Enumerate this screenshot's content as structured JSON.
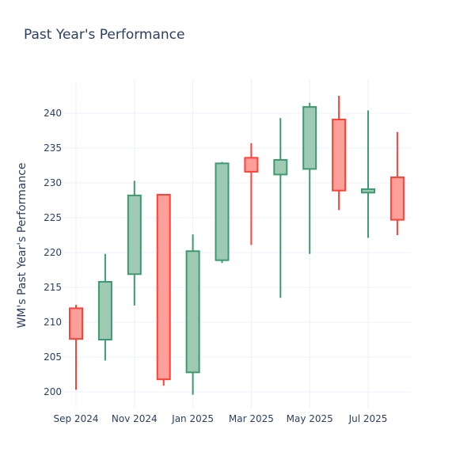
{
  "chart_data": {
    "type": "candlestick",
    "title": "Past Year's Performance",
    "xlabel": "",
    "ylabel": "WM's Past Year's Performance",
    "ylim": [
      197.5,
      245
    ],
    "grid": true,
    "colors": {
      "increasing": "#3d9970",
      "increasing_fill": "#9ecab4",
      "decreasing": "#ff4136",
      "decreasing_fill": "#ff9f9a",
      "grid": "#ebf0f8",
      "text": "#2a3f5f"
    },
    "x_ticks": [
      {
        "index": 0,
        "label": "Sep 2024"
      },
      {
        "index": 2,
        "label": "Nov 2024"
      },
      {
        "index": 4,
        "label": "Jan 2025"
      },
      {
        "index": 6,
        "label": "Mar 2025"
      },
      {
        "index": 8,
        "label": "May 2025"
      },
      {
        "index": 10,
        "label": "Jul 2025"
      }
    ],
    "y_ticks": [
      200,
      205,
      210,
      215,
      220,
      225,
      230,
      235,
      240
    ],
    "candles": [
      {
        "month": "2024-09",
        "open": 212.0,
        "high": 212.5,
        "low": 200.3,
        "close": 207.6
      },
      {
        "month": "2024-10",
        "open": 207.5,
        "high": 219.8,
        "low": 204.5,
        "close": 215.8
      },
      {
        "month": "2024-11",
        "open": 216.9,
        "high": 230.3,
        "low": 212.4,
        "close": 228.2
      },
      {
        "month": "2024-12",
        "open": 228.3,
        "high": 228.3,
        "low": 200.9,
        "close": 201.8
      },
      {
        "month": "2025-01",
        "open": 202.8,
        "high": 222.6,
        "low": 199.6,
        "close": 220.2
      },
      {
        "month": "2025-02",
        "open": 218.9,
        "high": 233.0,
        "low": 218.5,
        "close": 232.8
      },
      {
        "month": "2025-03",
        "open": 233.6,
        "high": 235.7,
        "low": 221.1,
        "close": 231.6
      },
      {
        "month": "2025-04",
        "open": 231.2,
        "high": 239.3,
        "low": 213.5,
        "close": 233.3
      },
      {
        "month": "2025-05",
        "open": 232.0,
        "high": 241.5,
        "low": 219.8,
        "close": 240.9
      },
      {
        "month": "2025-06",
        "open": 239.1,
        "high": 242.5,
        "low": 226.1,
        "close": 228.9
      },
      {
        "month": "2025-07",
        "open": 228.6,
        "high": 240.4,
        "low": 222.1,
        "close": 229.1
      },
      {
        "month": "2025-08",
        "open": 230.8,
        "high": 237.3,
        "low": 222.5,
        "close": 224.7
      }
    ]
  }
}
